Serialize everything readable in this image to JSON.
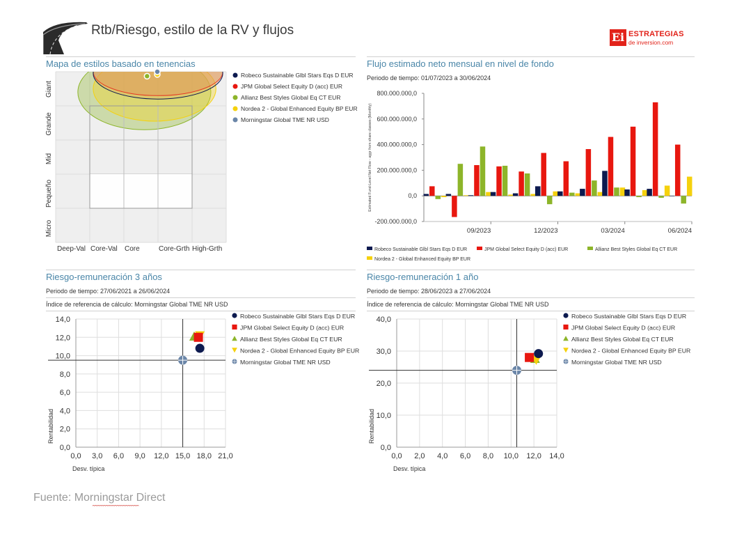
{
  "page": {
    "title": "Rtb/Riesgo, estilo de la RV y flujos",
    "logo_mark": "Ei",
    "logo_name": "ESTRATEGIAS",
    "logo_site": "de inversion.com",
    "source": "Fuente: Morningstar Direct"
  },
  "colors": {
    "robeco": "#0d1a4f",
    "jpm": "#e8170f",
    "allianz": "#8db52a",
    "nordea": "#f5d10d",
    "morningstar": "#6b86a8",
    "panel_title": "#4a86a8"
  },
  "chart_data": [
    {
      "id": "style-map",
      "type": "scatter",
      "title": "Mapa de estilos basado en tenencias",
      "x_labels": [
        "Deep-Val",
        "Core-Val",
        "Core",
        "Core-Grth",
        "High-Grth"
      ],
      "y_labels": [
        "Giant",
        "Grande",
        "Mid",
        "Pequeño",
        "Micro"
      ],
      "grid": true,
      "legend_position": "right",
      "series": [
        {
          "name": "Robeco Sustainable Glbl Stars Eqs D EUR",
          "x": 2.26,
          "y": 4.39,
          "color": "#0d1a4f",
          "ellipse": [
            2.0,
            3.95,
            1.9,
            0.75
          ]
        },
        {
          "name": "JPM Global Select Equity D (acc) EUR",
          "x": 2.26,
          "y": 4.39,
          "color": "#e8170f",
          "ellipse": [
            2.0,
            4.0,
            1.9,
            0.7
          ]
        },
        {
          "name": "Allianz Best Styles Global Eq CT EUR",
          "x": 1.68,
          "y": 3.87,
          "color": "#8db52a",
          "ellipse": [
            1.6,
            3.4,
            1.95,
            1.1
          ]
        },
        {
          "name": "Nordea 2 - Global Enhanced Equity BP EUR",
          "x": 1.98,
          "y": 3.92,
          "color": "#f5d10d",
          "ellipse": [
            1.9,
            3.5,
            1.8,
            0.95
          ]
        },
        {
          "name": "Morningstar Global TME NR USD",
          "x": 1.98,
          "y": 4.0,
          "color": "#6b86a8"
        }
      ]
    },
    {
      "id": "flows",
      "type": "bar",
      "title": "Flujo estimado neto mensual en nivel de fondo",
      "subtitle": "Periodo de tiempo: 01/07/2023 a 30/06/2024",
      "ylabel": "Estimated Fund-Level Net Flow - aggr from share classes (Monthly)",
      "ylim": [
        -200000000,
        800000000
      ],
      "y_ticks": [
        -200000000,
        0,
        200000000,
        400000000,
        600000000,
        800000000
      ],
      "y_tick_labels": [
        "-200.000.000,0",
        "0,0",
        "200.000.000,0",
        "400.000.000,0",
        "600.000.000,0",
        "800.000.000,0"
      ],
      "categories": [
        "07/2023",
        "08/2023",
        "09/2023",
        "10/2023",
        "11/2023",
        "12/2023",
        "01/2024",
        "02/2024",
        "03/2024",
        "04/2024",
        "05/2024",
        "06/2024"
      ],
      "x_tick_labels": [
        {
          "index": 2,
          "label": "09/2023"
        },
        {
          "index": 5,
          "label": "12/2023"
        },
        {
          "index": 8,
          "label": "03/2024"
        },
        {
          "index": 11,
          "label": "06/2024"
        }
      ],
      "legend_position": "bottom",
      "series": [
        {
          "name": "Robeco Sustainable Glbl Stars Eqs D EUR",
          "color": "#0d1a4f",
          "values": [
            15000000,
            15000000,
            5000000,
            30000000,
            20000000,
            75000000,
            35000000,
            55000000,
            195000000,
            50000000,
            55000000,
            0
          ]
        },
        {
          "name": "JPM Global Select Equity D (acc) EUR",
          "color": "#e8170f",
          "values": [
            75000000,
            -165000000,
            240000000,
            230000000,
            190000000,
            335000000,
            270000000,
            365000000,
            460000000,
            540000000,
            730000000,
            400000000
          ]
        },
        {
          "name": "Allianz Best Styles Global Eq CT EUR",
          "color": "#8db52a",
          "values": [
            -25000000,
            250000000,
            385000000,
            235000000,
            175000000,
            -65000000,
            25000000,
            120000000,
            65000000,
            -10000000,
            -15000000,
            -60000000
          ]
        },
        {
          "name": "Nordea 2 - Global Enhanced Equity BP EUR",
          "color": "#f5d10d",
          "values": [
            -10000000,
            5000000,
            30000000,
            10000000,
            15000000,
            35000000,
            20000000,
            30000000,
            65000000,
            45000000,
            80000000,
            150000000
          ]
        }
      ]
    },
    {
      "id": "risk-3y",
      "type": "scatter",
      "title": "Riesgo-remuneración 3 años",
      "subtitle": "Periodo de tiempo: 27/06/2021 a 26/06/2024",
      "benchmark_note": "Índice de referencia de cálculo: Morningstar Global TME NR USD",
      "xlabel": "Desv. típica",
      "ylabel": "Rentabilidad",
      "xlim": [
        0,
        21
      ],
      "ylim": [
        0,
        14
      ],
      "x_ticks": [
        0,
        3,
        6,
        9,
        12,
        15,
        18,
        21
      ],
      "x_tick_labels": [
        "0,0",
        "3,0",
        "6,0",
        "9,0",
        "12,0",
        "15,0",
        "18,0",
        "21,0"
      ],
      "y_ticks": [
        0,
        2,
        4,
        6,
        8,
        10,
        12,
        14
      ],
      "y_tick_labels": [
        "0,0",
        "2,0",
        "4,0",
        "6,0",
        "8,0",
        "10,0",
        "12,0",
        "14,0"
      ],
      "crosshair": {
        "x": 15.0,
        "y": 9.5
      },
      "grid": true,
      "legend_position": "right",
      "series": [
        {
          "name": "Robeco Sustainable Glbl Stars Eqs D EUR",
          "marker": "circle",
          "color": "#0d1a4f",
          "x": 17.4,
          "y": 10.8
        },
        {
          "name": "JPM Global Select Equity D (acc) EUR",
          "marker": "square",
          "color": "#e8170f",
          "x": 17.2,
          "y": 12.0
        },
        {
          "name": "Allianz Best Styles Global Eq CT EUR",
          "marker": "triangle",
          "color": "#8db52a",
          "x": 16.6,
          "y": 12.1
        },
        {
          "name": "Nordea 2 - Global Enhanced Equity BP EUR",
          "marker": "triangle-down",
          "color": "#f5d10d",
          "x": 17.4,
          "y": 12.2
        },
        {
          "name": "Morningstar Global TME NR USD",
          "marker": "circle-cross",
          "color": "#6b86a8",
          "x": 15.0,
          "y": 9.5
        }
      ]
    },
    {
      "id": "risk-1y",
      "type": "scatter",
      "title": "Riesgo-remuneración 1 año",
      "subtitle": "Periodo de tiempo: 28/06/2023 a 27/06/2024",
      "benchmark_note": "Índice de referencia de cálculo: Morningstar Global TME NR USD",
      "xlabel": "Desv. típica",
      "ylabel": "Rentabilidad",
      "xlim": [
        0,
        14
      ],
      "ylim": [
        0,
        40
      ],
      "x_ticks": [
        0,
        2,
        4,
        6,
        8,
        10,
        12,
        14
      ],
      "x_tick_labels": [
        "0,0",
        "2,0",
        "4,0",
        "6,0",
        "8,0",
        "10,0",
        "12,0",
        "14,0"
      ],
      "y_ticks": [
        0,
        10,
        20,
        30,
        40
      ],
      "y_tick_labels": [
        "0,0",
        "10,0",
        "20,0",
        "30,0",
        "40,0"
      ],
      "crosshair": {
        "x": 10.5,
        "y": 24.0
      },
      "grid": true,
      "legend_position": "right",
      "series": [
        {
          "name": "Robeco Sustainable Glbl Stars Eqs D EUR",
          "marker": "circle",
          "color": "#0d1a4f",
          "x": 12.4,
          "y": 29.2
        },
        {
          "name": "JPM Global Select Equity D (acc) EUR",
          "marker": "square",
          "color": "#e8170f",
          "x": 11.6,
          "y": 28.0
        },
        {
          "name": "Allianz Best Styles Global Eq CT EUR",
          "marker": "triangle",
          "color": "#8db52a",
          "x": 12.1,
          "y": 27.6
        },
        {
          "name": "Nordea 2 - Global Enhanced Equity BP EUR",
          "marker": "triangle-down",
          "color": "#f5d10d",
          "x": 12.2,
          "y": 27.2
        },
        {
          "name": "Morningstar Global TME NR USD",
          "marker": "circle-cross",
          "color": "#6b86a8",
          "x": 10.5,
          "y": 24.0
        }
      ]
    }
  ]
}
